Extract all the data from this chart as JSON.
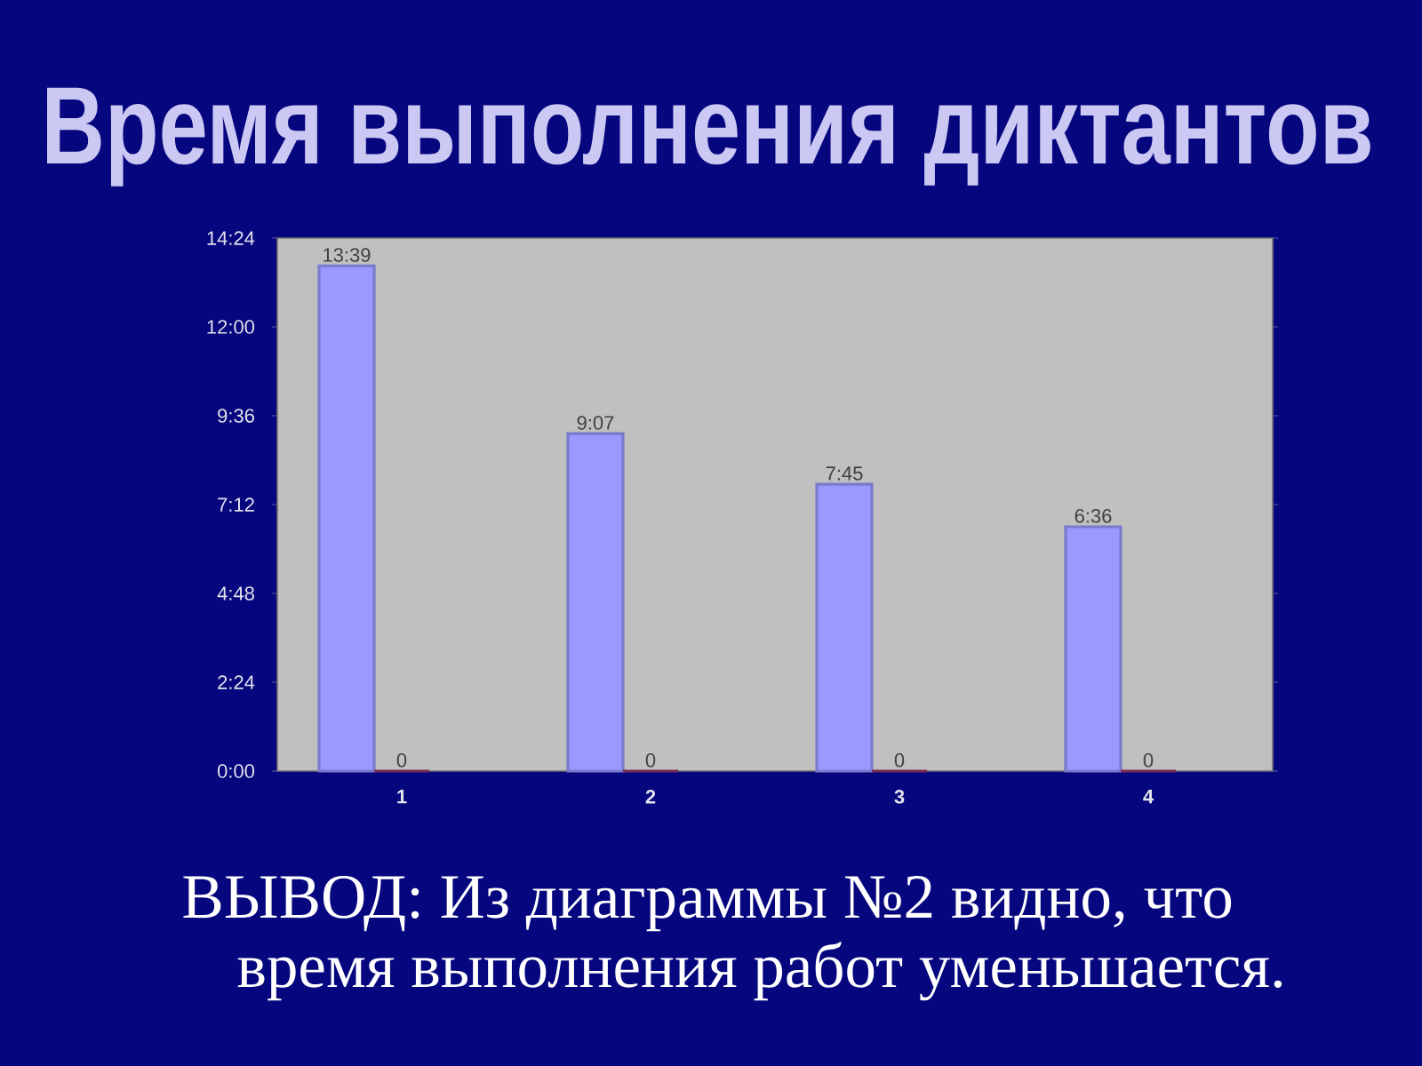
{
  "chart_data": {
    "type": "bar",
    "title": "Время выполнения диктантов",
    "categories": [
      "1",
      "2",
      "3",
      "4"
    ],
    "series": [
      {
        "color": "#9999ff",
        "values": [
          819,
          547,
          465,
          396
        ],
        "value_labels": [
          "13:39",
          "9:07",
          "7:45",
          "6:36"
        ]
      },
      {
        "color": "#993366",
        "values": [
          0,
          0,
          0,
          0
        ],
        "value_labels": [
          "0",
          "0",
          "0",
          "0"
        ]
      }
    ],
    "ylim": [
      0,
      864
    ],
    "yticks": [
      {
        "value": 0,
        "label": "0:00"
      },
      {
        "value": 144,
        "label": "2:24"
      },
      {
        "value": 288,
        "label": "4:48"
      },
      {
        "value": 432,
        "label": "7:12"
      },
      {
        "value": 576,
        "label": "9:36"
      },
      {
        "value": 720,
        "label": "12:00"
      },
      {
        "value": 864,
        "label": "14:24"
      }
    ],
    "annotations": [
      "ВЫВОД: Из диаграммы №2 видно, что время выполнения работ уменьшается."
    ]
  }
}
